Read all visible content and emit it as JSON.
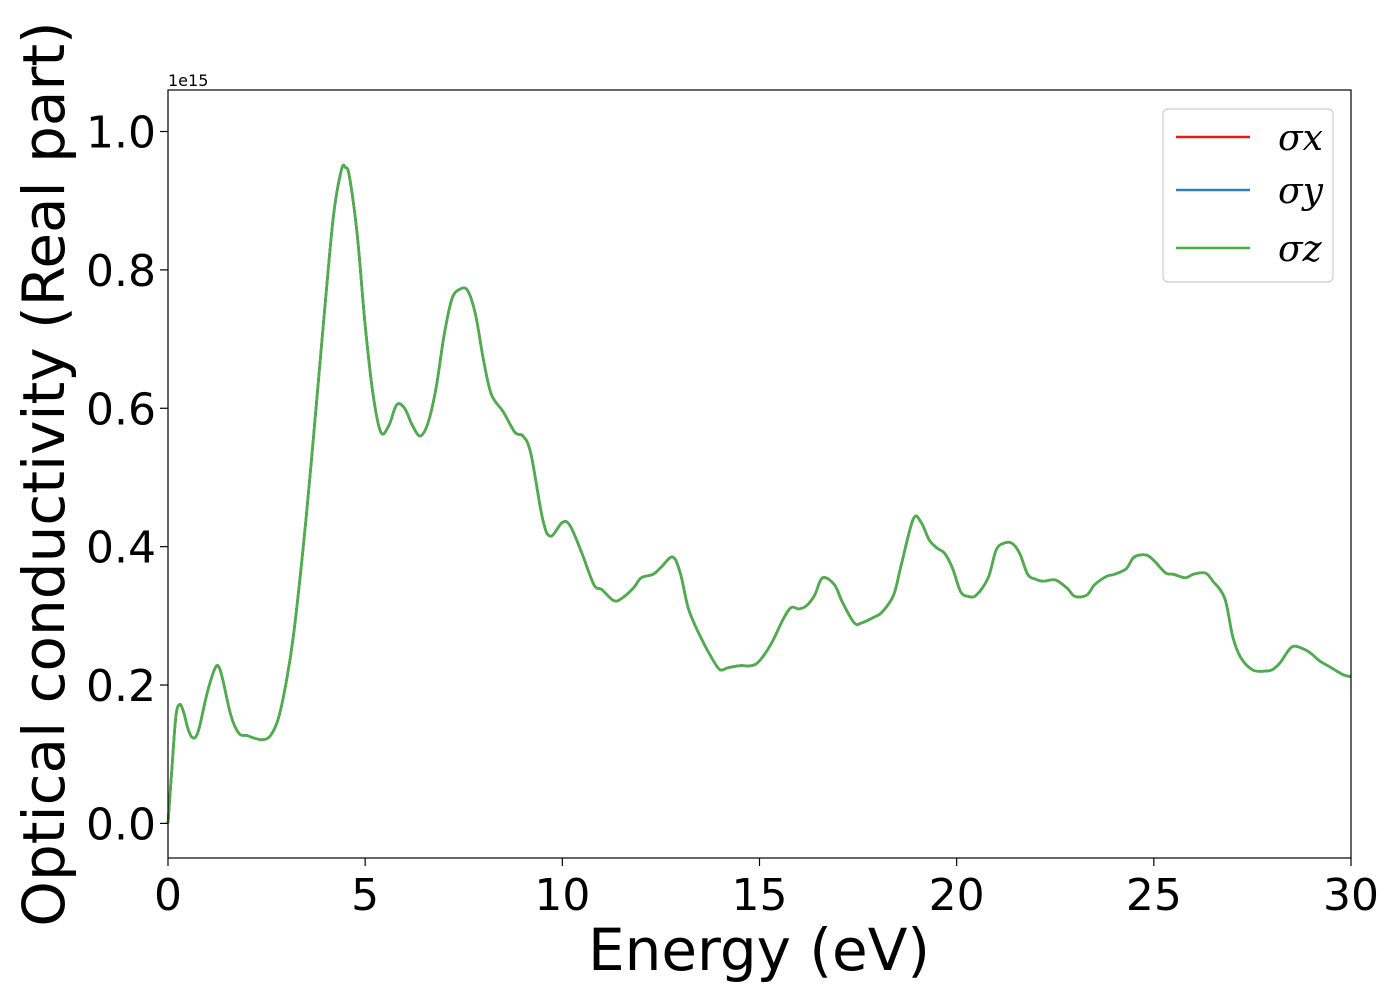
{
  "chart_data": {
    "type": "line",
    "xlabel": "Energy (eV)",
    "ylabel": "Optical conductivity (Real part)",
    "y_offset_label": "1e15",
    "xlim": [
      0,
      30
    ],
    "ylim": [
      -0.05,
      1.06
    ],
    "xticks": [
      0,
      5,
      10,
      15,
      20,
      25,
      30
    ],
    "xtick_labels": [
      "0",
      "5",
      "10",
      "15",
      "20",
      "25",
      "30"
    ],
    "yticks": [
      0.0,
      0.2,
      0.4,
      0.6,
      0.8,
      1.0
    ],
    "ytick_labels": [
      "0.0",
      "0.2",
      "0.4",
      "0.6",
      "0.8",
      "1.0"
    ],
    "grid": false,
    "legend_position": "top-right",
    "series": [
      {
        "name": "σx",
        "color": "#e41a1c",
        "x": [
          0.0,
          0.1,
          0.2,
          0.3,
          0.4,
          0.5,
          0.6,
          0.7,
          0.8,
          1.0,
          1.2,
          1.3,
          1.4,
          1.6,
          1.8,
          2.0,
          2.2,
          2.4,
          2.6,
          2.8,
          3.0,
          3.2,
          3.5,
          3.8,
          4.0,
          4.2,
          4.4,
          4.5,
          4.6,
          4.8,
          5.0,
          5.2,
          5.4,
          5.6,
          5.8,
          6.0,
          6.2,
          6.4,
          6.6,
          6.8,
          7.0,
          7.2,
          7.4,
          7.6,
          7.8,
          8.0,
          8.2,
          8.5,
          8.8,
          9.0,
          9.2,
          9.5,
          9.7,
          10.0,
          10.2,
          10.5,
          10.8,
          11.0,
          11.3,
          11.5,
          11.8,
          12.0,
          12.3,
          12.5,
          12.8,
          13.0,
          13.2,
          13.5,
          13.8,
          14.0,
          14.2,
          14.5,
          14.8,
          15.0,
          15.3,
          15.6,
          15.8,
          16.0,
          16.2,
          16.4,
          16.6,
          16.9,
          17.1,
          17.4,
          17.6,
          17.9,
          18.1,
          18.4,
          18.6,
          18.9,
          19.1,
          19.3,
          19.5,
          19.7,
          19.9,
          20.1,
          20.3,
          20.5,
          20.8,
          21.0,
          21.2,
          21.4,
          21.6,
          21.8,
          22.0,
          22.2,
          22.5,
          22.8,
          23.0,
          23.3,
          23.5,
          23.8,
          24.0,
          24.3,
          24.5,
          24.8,
          25.0,
          25.3,
          25.5,
          25.8,
          26.0,
          26.3,
          26.5,
          26.8,
          27.0,
          27.2,
          27.5,
          27.8,
          28.0,
          28.2,
          28.5,
          28.8,
          29.0,
          29.2,
          29.5,
          29.8,
          30.0
        ],
        "y": [
          0.0,
          0.08,
          0.155,
          0.172,
          0.16,
          0.138,
          0.125,
          0.125,
          0.14,
          0.19,
          0.225,
          0.225,
          0.205,
          0.155,
          0.13,
          0.127,
          0.123,
          0.121,
          0.127,
          0.152,
          0.205,
          0.28,
          0.44,
          0.63,
          0.76,
          0.88,
          0.945,
          0.948,
          0.935,
          0.85,
          0.72,
          0.62,
          0.565,
          0.575,
          0.605,
          0.6,
          0.575,
          0.56,
          0.58,
          0.63,
          0.705,
          0.758,
          0.772,
          0.77,
          0.735,
          0.67,
          0.62,
          0.595,
          0.565,
          0.56,
          0.535,
          0.44,
          0.415,
          0.435,
          0.43,
          0.39,
          0.345,
          0.338,
          0.322,
          0.325,
          0.34,
          0.355,
          0.36,
          0.37,
          0.385,
          0.36,
          0.31,
          0.27,
          0.238,
          0.222,
          0.225,
          0.228,
          0.228,
          0.235,
          0.26,
          0.295,
          0.312,
          0.31,
          0.315,
          0.33,
          0.355,
          0.345,
          0.32,
          0.29,
          0.29,
          0.298,
          0.305,
          0.33,
          0.375,
          0.44,
          0.435,
          0.41,
          0.398,
          0.39,
          0.368,
          0.335,
          0.328,
          0.33,
          0.355,
          0.395,
          0.405,
          0.405,
          0.39,
          0.36,
          0.353,
          0.35,
          0.352,
          0.34,
          0.328,
          0.33,
          0.345,
          0.357,
          0.36,
          0.368,
          0.385,
          0.388,
          0.38,
          0.362,
          0.36,
          0.355,
          0.36,
          0.362,
          0.35,
          0.325,
          0.27,
          0.24,
          0.222,
          0.22,
          0.222,
          0.232,
          0.255,
          0.252,
          0.245,
          0.235,
          0.225,
          0.215,
          0.212
        ]
      },
      {
        "name": "σy",
        "color": "#377eb8",
        "same_as": "σx"
      },
      {
        "name": "σz",
        "color": "#4daf4a",
        "same_as": "σx"
      }
    ]
  }
}
